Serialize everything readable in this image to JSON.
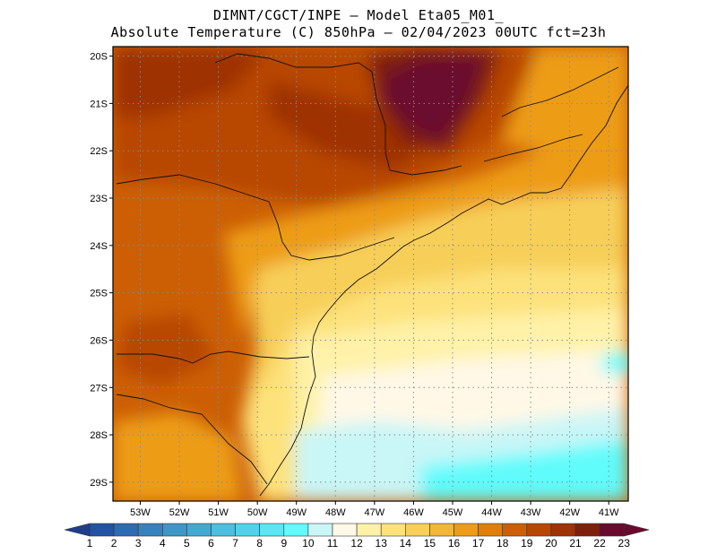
{
  "header": {
    "line1": "DIMNT/CGCT/INPE –  Model Eta05_M01_",
    "line2": "Absolute Temperature (C) 850hPa –  02/04/2023 00UTC fct=23h"
  },
  "map": {
    "lat_labels": [
      "20S",
      "21S",
      "22S",
      "23S",
      "24S",
      "25S",
      "26S",
      "27S",
      "28S",
      "29S"
    ],
    "lon_labels": [
      "53W",
      "52W",
      "51W",
      "50W",
      "49W",
      "48W",
      "47W",
      "46W",
      "45W",
      "44W",
      "43W",
      "42W",
      "41W"
    ],
    "lon_range": [
      53.7,
      40.5
    ],
    "lat_range": [
      19.8,
      29.4
    ]
  },
  "colorbar": {
    "labels": [
      "1",
      "2",
      "3",
      "4",
      "5",
      "6",
      "7",
      "8",
      "9",
      "10",
      "11",
      "12",
      "13",
      "14",
      "15",
      "16",
      "17",
      "18",
      "19",
      "20",
      "21",
      "22",
      "23"
    ],
    "colors": [
      "#1f3d8c",
      "#2253a3",
      "#2a6bb3",
      "#3682be",
      "#3d97c7",
      "#42aad2",
      "#4cbede",
      "#52d2ea",
      "#5ae6f3",
      "#61fbfb",
      "#c9f6f7",
      "#fff8e6",
      "#fff2a8",
      "#fde27c",
      "#f7cf59",
      "#f2b638",
      "#ed9c15",
      "#e07f06",
      "#cc5f04",
      "#b84600",
      "#9e3305",
      "#7f1f0c",
      "#6a0a2d"
    ]
  }
}
